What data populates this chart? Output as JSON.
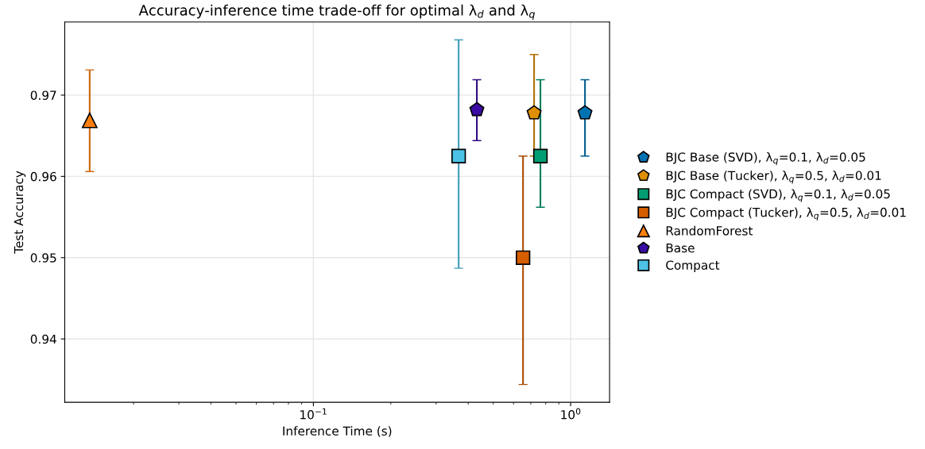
{
  "chart_data": {
    "type": "scatter",
    "title": "Accuracy-inference time trade-off for optimal λ$_{d}$ and λ$_{q}$",
    "xlabel": "Inference Time (s)",
    "ylabel": "Test Accuracy",
    "log": "x",
    "xlim": [
      0.0108,
      1.417
    ],
    "xticks": [
      {
        "value": 0.1,
        "label": "10$^{−1}$"
      },
      {
        "value": 1,
        "label": "10$^{0}$"
      }
    ],
    "ylim": [
      0.9322,
      0.979
    ],
    "yticks": [
      0.94,
      0.95,
      0.96,
      0.97
    ],
    "grid": true,
    "legend": "right",
    "series": [
      {
        "name": "BJC Base (SVD), λ$_{q}$=0.1, λ$_{d}$=0.05",
        "color": "#0173b2",
        "x": [
          1.137
        ],
        "values": [
          0.9678
        ],
        "errors": [
          [
            0.9625,
            0.9719
          ]
        ]
      },
      {
        "name": "BJC Base (Tucker), λ$_{q}$=0.5, λ$_{d}$=0.01",
        "color": "#de8f05",
        "x": [
          0.721
        ],
        "values": [
          0.9678
        ],
        "errors": [
          [
            0.9625,
            0.975
          ]
        ]
      },
      {
        "name": "BJC Compact (SVD), λ$_{q}$=0.1, λ$_{d}$=0.05",
        "color": "#029e73",
        "marker": "square",
        "x": [
          0.763
        ],
        "values": [
          0.9625
        ],
        "errors": [
          [
            0.9562,
            0.9719
          ]
        ]
      },
      {
        "name": "BJC Compact (Tucker), λ$_{q}$=0.5, λ$_{d}$=0.01",
        "color": "#d55e00",
        "marker": "square",
        "x": [
          0.653
        ],
        "values": [
          0.95
        ],
        "errors": [
          [
            0.9344,
            0.9625
          ]
        ]
      },
      {
        "name": "RandomForest",
        "color": "#ff7f0e",
        "marker": "triangle",
        "x": [
          0.0135
        ],
        "values": [
          0.9669
        ],
        "errors": [
          [
            0.9606,
            0.9731
          ]
        ]
      },
      {
        "name": "Base",
        "color": "#3a0ca3",
        "x": [
          0.432
        ],
        "values": [
          0.9682
        ],
        "errors": [
          [
            0.9644,
            0.9719
          ]
        ]
      },
      {
        "name": "Compact",
        "color": "#4cc3e6",
        "marker": "square",
        "x": [
          0.367
        ],
        "values": [
          0.9625
        ],
        "errors": [
          [
            0.9487,
            0.9768
          ]
        ]
      }
    ]
  }
}
